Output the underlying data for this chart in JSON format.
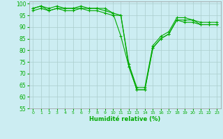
{
  "x": [
    0,
    1,
    2,
    3,
    4,
    5,
    6,
    7,
    8,
    9,
    10,
    11,
    12,
    13,
    14,
    15,
    16,
    17,
    18,
    19,
    20,
    21,
    22,
    23
  ],
  "line1": [
    98,
    99,
    97,
    98,
    98,
    98,
    98,
    98,
    98,
    98,
    96,
    86,
    73,
    63,
    63,
    81,
    85,
    87,
    93,
    93,
    93,
    91,
    91,
    91
  ],
  "line2": [
    98,
    99,
    98,
    99,
    98,
    98,
    99,
    98,
    98,
    97,
    96,
    95,
    74,
    64,
    64,
    82,
    86,
    88,
    94,
    94,
    93,
    92,
    92,
    92
  ],
  "line3": [
    97,
    98,
    97,
    98,
    97,
    97,
    98,
    97,
    97,
    96,
    95,
    95,
    73,
    63,
    63,
    81,
    85,
    87,
    93,
    92,
    92,
    91,
    91,
    91
  ],
  "xlabel": "Humidité relative (%)",
  "xlim": [
    -0.5,
    23.5
  ],
  "ylim": [
    55,
    101
  ],
  "yticks": [
    55,
    60,
    65,
    70,
    75,
    80,
    85,
    90,
    95,
    100
  ],
  "xticks": [
    0,
    1,
    2,
    3,
    4,
    5,
    6,
    7,
    8,
    9,
    10,
    11,
    12,
    13,
    14,
    15,
    16,
    17,
    18,
    19,
    20,
    21,
    22,
    23
  ],
  "bg_color": "#cceef2",
  "grid_color": "#aacccc",
  "line_color": "#00aa00",
  "marker": "+",
  "font_color": "#00aa00",
  "xlabel_fontsize": 6.0,
  "xtick_fontsize": 4.5,
  "ytick_fontsize": 5.5
}
